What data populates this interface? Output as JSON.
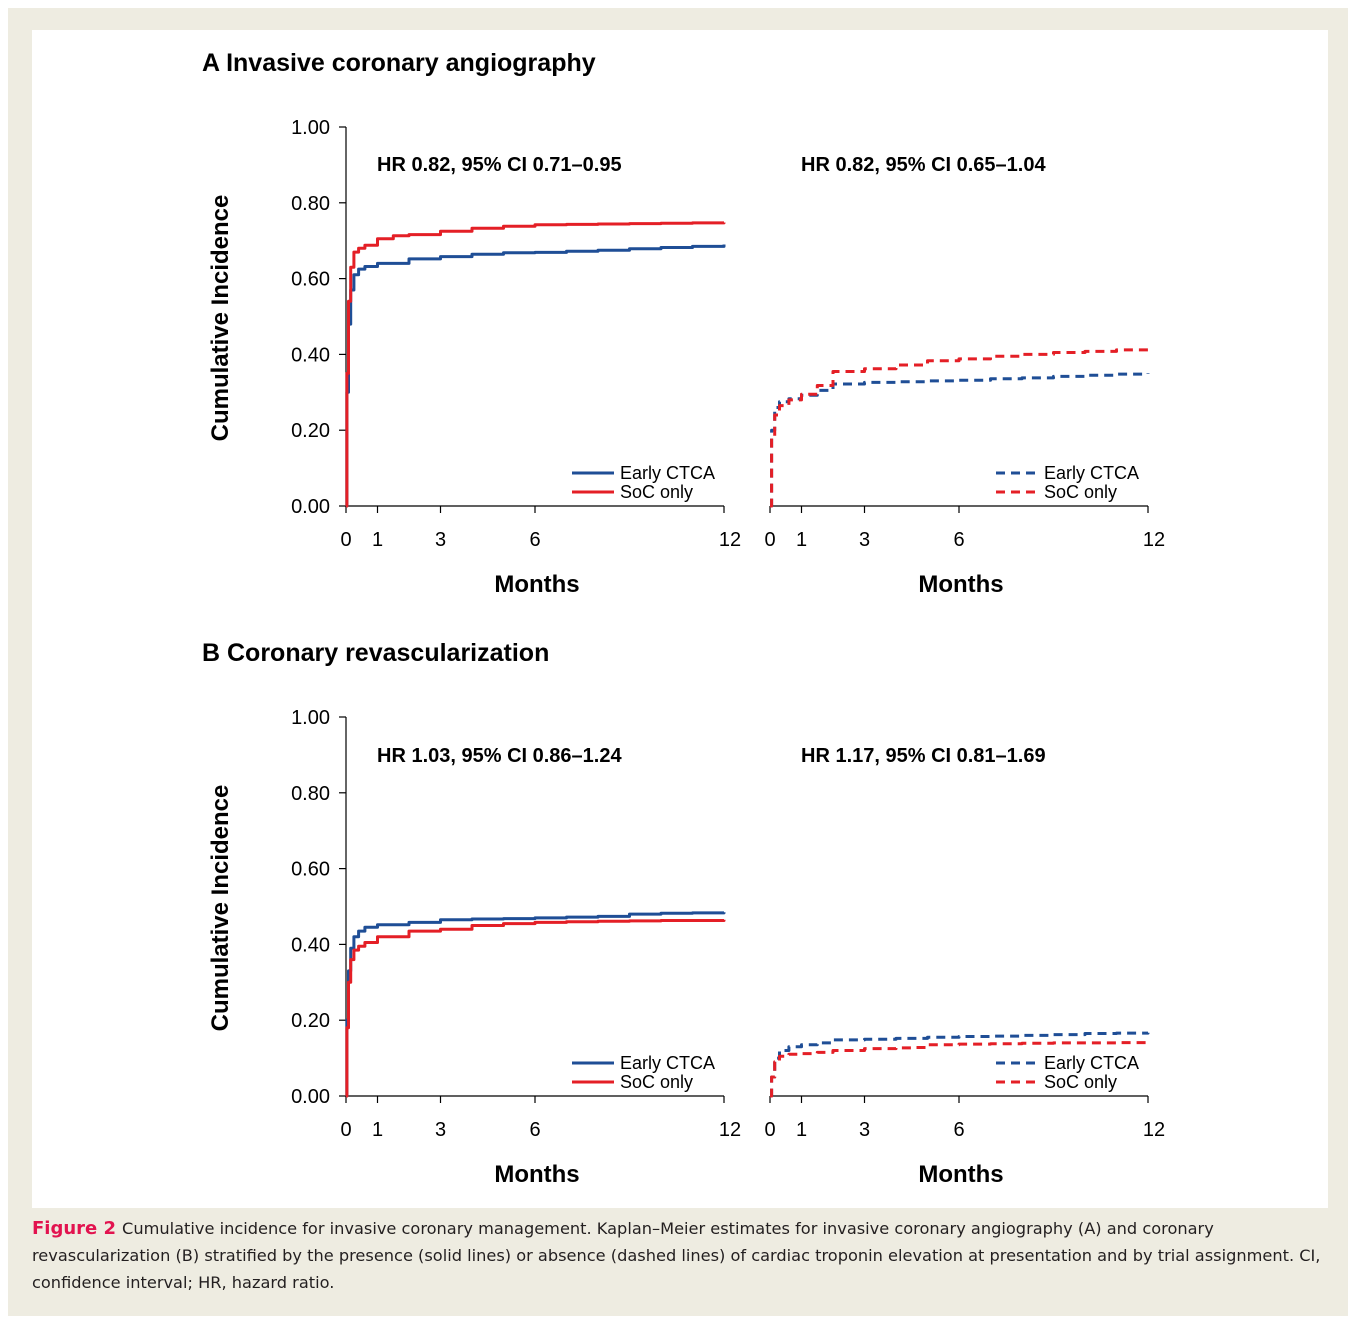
{
  "colors": {
    "blue": "#1f4e96",
    "red": "#e41f26",
    "frame": "#eeece1",
    "caption_label": "#e2134f"
  },
  "panels": [
    {
      "id": "A",
      "title": "A Invasive coronary angiography"
    },
    {
      "id": "B",
      "title": "B Coronary revascularization"
    }
  ],
  "caption": {
    "label": "Figure 2",
    "text": "Cumulative incidence for invasive coronary management. Kaplan–Meier estimates for invasive coronary angiography (A) and coronary revascularization (B) stratified by the presence (solid lines) or absence (dashed lines) of cardiac troponin elevation at presentation and by trial assignment. CI, confidence interval; HR, hazard ratio."
  },
  "chart_data": [
    {
      "type": "line",
      "panel": "A",
      "subplot": "solid",
      "annotation": "HR 0.82, 95% CI 0.71–0.95",
      "xlabel": "Months",
      "ylabel": "Cumulative Incidence",
      "xlim": [
        0,
        12
      ],
      "ylim": [
        0,
        1
      ],
      "xticks": [
        "0",
        "1",
        "3",
        "6",
        "12"
      ],
      "yticks": [
        "0.00",
        "0.20",
        "0.40",
        "0.60",
        "0.80",
        "1.00"
      ],
      "legend_position": "bottom-right",
      "line_style": "solid",
      "series": [
        {
          "name": "Early CTCA",
          "color": "#1f4e96",
          "x": [
            0,
            0.03,
            0.08,
            0.15,
            0.25,
            0.4,
            0.6,
            1,
            2,
            3,
            4,
            5,
            6,
            7,
            8,
            9,
            10,
            11,
            12
          ],
          "y": [
            0,
            0.3,
            0.48,
            0.57,
            0.61,
            0.625,
            0.632,
            0.64,
            0.652,
            0.658,
            0.664,
            0.668,
            0.669,
            0.672,
            0.675,
            0.679,
            0.682,
            0.685,
            0.69
          ]
        },
        {
          "name": "SoC only",
          "color": "#e41f26",
          "x": [
            0,
            0.03,
            0.08,
            0.15,
            0.25,
            0.4,
            0.6,
            1,
            1.5,
            2,
            3,
            4,
            5,
            6,
            7,
            8,
            9,
            10,
            11,
            12
          ],
          "y": [
            0,
            0.35,
            0.54,
            0.63,
            0.67,
            0.68,
            0.688,
            0.705,
            0.713,
            0.716,
            0.725,
            0.733,
            0.738,
            0.742,
            0.743,
            0.744,
            0.745,
            0.746,
            0.747,
            0.748
          ]
        }
      ]
    },
    {
      "type": "line",
      "panel": "A",
      "subplot": "dashed",
      "annotation": "HR 0.82, 95% CI 0.65–1.04",
      "xlabel": "Months",
      "ylabel": "",
      "xlim": [
        0,
        12
      ],
      "ylim": [
        0,
        1
      ],
      "xticks": [
        "0",
        "1",
        "3",
        "6",
        "12"
      ],
      "legend_position": "bottom-right",
      "line_style": "dashed",
      "series": [
        {
          "name": "Early CTCA",
          "color": "#1f4e96",
          "x": [
            0,
            0.05,
            0.15,
            0.3,
            0.6,
            1,
            1.5,
            2,
            3,
            4,
            5,
            6,
            7,
            8,
            9,
            10,
            11,
            12
          ],
          "y": [
            0,
            0.2,
            0.26,
            0.275,
            0.283,
            0.292,
            0.305,
            0.322,
            0.326,
            0.328,
            0.33,
            0.332,
            0.336,
            0.338,
            0.342,
            0.345,
            0.348,
            0.35
          ]
        },
        {
          "name": "SoC only",
          "color": "#e41f26",
          "x": [
            0,
            0.05,
            0.15,
            0.3,
            0.6,
            1,
            1.5,
            2,
            3,
            4,
            5,
            6,
            7,
            8,
            9,
            10,
            11,
            12
          ],
          "y": [
            0,
            0.18,
            0.24,
            0.265,
            0.28,
            0.295,
            0.318,
            0.355,
            0.362,
            0.372,
            0.383,
            0.388,
            0.395,
            0.4,
            0.405,
            0.408,
            0.412,
            0.415
          ]
        }
      ]
    },
    {
      "type": "line",
      "panel": "B",
      "subplot": "solid",
      "annotation": "HR 1.03, 95% CI 0.86–1.24",
      "xlabel": "Months",
      "ylabel": "Cumulative Incidence",
      "xlim": [
        0,
        12
      ],
      "ylim": [
        0,
        1
      ],
      "xticks": [
        "0",
        "1",
        "3",
        "6",
        "12"
      ],
      "yticks": [
        "0.00",
        "0.20",
        "0.40",
        "0.60",
        "0.80",
        "1.00"
      ],
      "legend_position": "bottom-right",
      "line_style": "solid",
      "series": [
        {
          "name": "Early CTCA",
          "color": "#1f4e96",
          "x": [
            0,
            0.03,
            0.08,
            0.15,
            0.25,
            0.4,
            0.6,
            1,
            2,
            3,
            4,
            5,
            6,
            7,
            8,
            9,
            10,
            11,
            12
          ],
          "y": [
            0,
            0.2,
            0.33,
            0.39,
            0.42,
            0.435,
            0.445,
            0.452,
            0.458,
            0.465,
            0.467,
            0.468,
            0.47,
            0.472,
            0.474,
            0.48,
            0.482,
            0.483,
            0.485
          ]
        },
        {
          "name": "SoC only",
          "color": "#e41f26",
          "x": [
            0,
            0.03,
            0.08,
            0.15,
            0.25,
            0.4,
            0.6,
            1,
            2,
            3,
            4,
            5,
            6,
            7,
            8,
            9,
            10,
            11,
            12
          ],
          "y": [
            0,
            0.18,
            0.3,
            0.36,
            0.385,
            0.395,
            0.405,
            0.42,
            0.435,
            0.44,
            0.45,
            0.455,
            0.458,
            0.46,
            0.461,
            0.462,
            0.463,
            0.463,
            0.465
          ]
        }
      ]
    },
    {
      "type": "line",
      "panel": "B",
      "subplot": "dashed",
      "annotation": "HR 1.17, 95% CI 0.81–1.69",
      "xlabel": "Months",
      "ylabel": "",
      "xlim": [
        0,
        12
      ],
      "ylim": [
        0,
        1
      ],
      "xticks": [
        "0",
        "1",
        "3",
        "6",
        "12"
      ],
      "legend_position": "bottom-right",
      "line_style": "dashed",
      "series": [
        {
          "name": "Early CTCA",
          "color": "#1f4e96",
          "x": [
            0,
            0.05,
            0.15,
            0.3,
            0.6,
            1,
            1.5,
            2,
            3,
            4,
            5,
            6,
            7,
            8,
            9,
            10,
            11,
            12
          ],
          "y": [
            0,
            0.05,
            0.1,
            0.12,
            0.13,
            0.135,
            0.14,
            0.148,
            0.15,
            0.152,
            0.155,
            0.157,
            0.158,
            0.16,
            0.162,
            0.165,
            0.166,
            0.167
          ]
        },
        {
          "name": "SoC only",
          "color": "#e41f26",
          "x": [
            0,
            0.05,
            0.15,
            0.3,
            0.6,
            1,
            1.5,
            2,
            3,
            4,
            4.5,
            5,
            6,
            7,
            8,
            9,
            10,
            11,
            12
          ],
          "y": [
            0,
            0.05,
            0.09,
            0.105,
            0.11,
            0.112,
            0.115,
            0.12,
            0.125,
            0.127,
            0.128,
            0.135,
            0.137,
            0.138,
            0.139,
            0.14,
            0.14,
            0.141,
            0.148
          ]
        }
      ]
    }
  ]
}
